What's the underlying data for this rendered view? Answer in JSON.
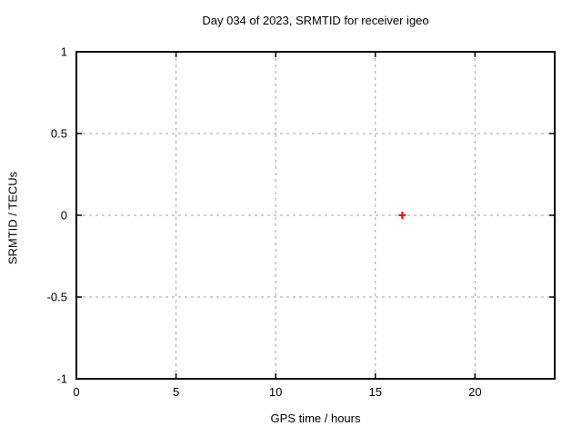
{
  "chart_data": {
    "type": "scatter",
    "title": "Day 034 of 2023, SRMTID for receiver igeo",
    "xlabel": "GPS time / hours",
    "ylabel": "SRMTID / TECUs",
    "xlim": [
      0,
      24
    ],
    "ylim": [
      -1,
      1
    ],
    "xticks": [
      0,
      5,
      10,
      15,
      20
    ],
    "xtick_labels": [
      "0",
      "5",
      "10",
      "15",
      "20"
    ],
    "yticks": [
      -1,
      -0.5,
      0,
      0.5,
      1
    ],
    "ytick_labels": [
      "-1",
      "-0.5",
      "0",
      "0.5",
      "1"
    ],
    "grid": true,
    "legend": "none",
    "series": [
      {
        "name": "SRMTID",
        "marker": "plus",
        "color": "#ff0000",
        "points": [
          {
            "x": 16.35,
            "y": 0.0
          }
        ]
      }
    ],
    "colors": {
      "background": "#ffffff",
      "border": "#000000",
      "grid": "#a0a0a0",
      "text": "#000000"
    }
  }
}
